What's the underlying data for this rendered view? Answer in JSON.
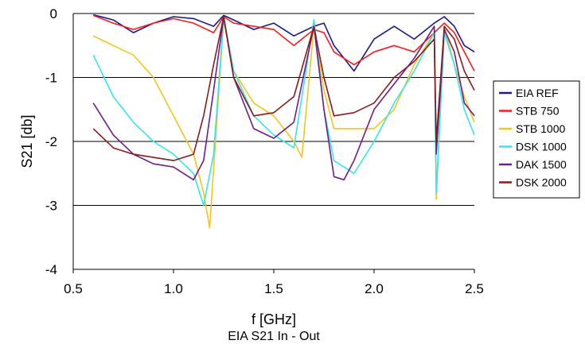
{
  "chart_data": {
    "type": "line",
    "xlabel": "f [GHz]",
    "ylabel": "S21 [db]",
    "caption": "EIA S21 In - Out",
    "xlim": [
      0.5,
      2.5
    ],
    "ylim": [
      -4,
      0
    ],
    "xticks": [
      "0.5",
      "1.0",
      "1.5",
      "2.0",
      "2.5"
    ],
    "yticks": [
      "0",
      "-1",
      "-2",
      "-3",
      "-4"
    ],
    "grid": "horizontal",
    "legend_position": "right",
    "series": [
      {
        "name": "EIA REF",
        "color": "#1a1a8c",
        "x": [
          0.6,
          0.7,
          0.8,
          0.9,
          1.0,
          1.1,
          1.2,
          1.25,
          1.3,
          1.4,
          1.5,
          1.6,
          1.7,
          1.75,
          1.8,
          1.9,
          2.0,
          2.1,
          2.2,
          2.3,
          2.35,
          2.4,
          2.45,
          2.5
        ],
        "y": [
          -0.02,
          -0.1,
          -0.3,
          -0.15,
          -0.05,
          -0.08,
          -0.2,
          -0.03,
          -0.1,
          -0.25,
          -0.15,
          -0.35,
          -0.2,
          -0.15,
          -0.5,
          -0.9,
          -0.4,
          -0.2,
          -0.4,
          -0.15,
          -0.05,
          -0.2,
          -0.5,
          -0.6
        ]
      },
      {
        "name": "STB 750",
        "color": "#ff1a1a",
        "x": [
          0.6,
          0.7,
          0.8,
          0.9,
          1.0,
          1.1,
          1.2,
          1.25,
          1.3,
          1.4,
          1.5,
          1.6,
          1.7,
          1.75,
          1.8,
          1.9,
          2.0,
          2.1,
          2.2,
          2.3,
          2.35,
          2.4,
          2.45,
          2.5
        ],
        "y": [
          -0.03,
          -0.15,
          -0.25,
          -0.15,
          -0.08,
          -0.15,
          -0.3,
          -0.05,
          -0.15,
          -0.2,
          -0.25,
          -0.5,
          -0.25,
          -0.3,
          -0.6,
          -0.8,
          -0.6,
          -0.5,
          -0.6,
          -0.3,
          -0.15,
          -0.3,
          -0.6,
          -0.9
        ]
      },
      {
        "name": "STB 1000",
        "color": "#f5c518",
        "x": [
          0.6,
          0.7,
          0.8,
          0.9,
          1.0,
          1.1,
          1.15,
          1.18,
          1.22,
          1.25,
          1.3,
          1.4,
          1.5,
          1.6,
          1.64,
          1.7,
          1.75,
          1.8,
          1.9,
          2.0,
          2.1,
          2.2,
          2.3,
          2.31,
          2.35,
          2.4,
          2.45,
          2.5
        ],
        "y": [
          -0.35,
          -0.5,
          -0.65,
          -1.0,
          -1.6,
          -2.2,
          -2.8,
          -3.35,
          -1.5,
          -0.1,
          -0.9,
          -1.4,
          -1.6,
          -2.0,
          -2.25,
          -0.2,
          -1.2,
          -1.8,
          -1.8,
          -1.8,
          -1.5,
          -0.8,
          -0.3,
          -2.9,
          -0.2,
          -0.8,
          -1.3,
          -1.7
        ]
      },
      {
        "name": "DSK 1000",
        "color": "#33e6f0",
        "x": [
          0.6,
          0.7,
          0.8,
          0.9,
          1.0,
          1.1,
          1.15,
          1.2,
          1.25,
          1.3,
          1.4,
          1.5,
          1.6,
          1.7,
          1.75,
          1.8,
          1.9,
          2.0,
          2.1,
          2.2,
          2.3,
          2.31,
          2.35,
          2.4,
          2.45,
          2.5
        ],
        "y": [
          -0.65,
          -1.3,
          -1.7,
          -2.0,
          -2.2,
          -2.5,
          -3.0,
          -2.2,
          -0.05,
          -0.9,
          -1.6,
          -1.9,
          -2.1,
          -0.1,
          -1.5,
          -2.3,
          -2.5,
          -2.0,
          -1.4,
          -0.9,
          -0.3,
          -2.8,
          -0.3,
          -0.8,
          -1.5,
          -1.9
        ]
      },
      {
        "name": "DAK 1500",
        "color": "#701c8c",
        "x": [
          0.6,
          0.7,
          0.8,
          0.9,
          1.0,
          1.1,
          1.15,
          1.2,
          1.25,
          1.3,
          1.4,
          1.5,
          1.6,
          1.7,
          1.75,
          1.8,
          1.85,
          1.9,
          2.0,
          2.1,
          2.2,
          2.3,
          2.31,
          2.35,
          2.4,
          2.45,
          2.5
        ],
        "y": [
          -1.4,
          -1.9,
          -2.2,
          -2.35,
          -2.4,
          -2.6,
          -2.3,
          -1.2,
          -0.05,
          -1.0,
          -1.8,
          -1.95,
          -1.7,
          -0.2,
          -1.5,
          -2.55,
          -2.6,
          -2.3,
          -1.5,
          -1.1,
          -0.7,
          -0.2,
          -2.2,
          -0.25,
          -0.6,
          -1.4,
          -1.6
        ]
      },
      {
        "name": "DSK 2000",
        "color": "#8b1a1a",
        "x": [
          0.6,
          0.7,
          0.8,
          0.9,
          1.0,
          1.1,
          1.15,
          1.2,
          1.25,
          1.3,
          1.4,
          1.5,
          1.6,
          1.7,
          1.75,
          1.8,
          1.9,
          2.0,
          2.1,
          2.2,
          2.3,
          2.31,
          2.35,
          2.4,
          2.45,
          2.5
        ],
        "y": [
          -1.8,
          -2.1,
          -2.2,
          -2.25,
          -2.3,
          -2.2,
          -1.6,
          -0.8,
          -0.05,
          -1.0,
          -1.6,
          -1.55,
          -1.3,
          -0.2,
          -1.0,
          -1.6,
          -1.55,
          -1.4,
          -1.0,
          -0.75,
          -0.4,
          -2.0,
          -0.2,
          -0.4,
          -0.9,
          -1.2
        ]
      }
    ]
  }
}
